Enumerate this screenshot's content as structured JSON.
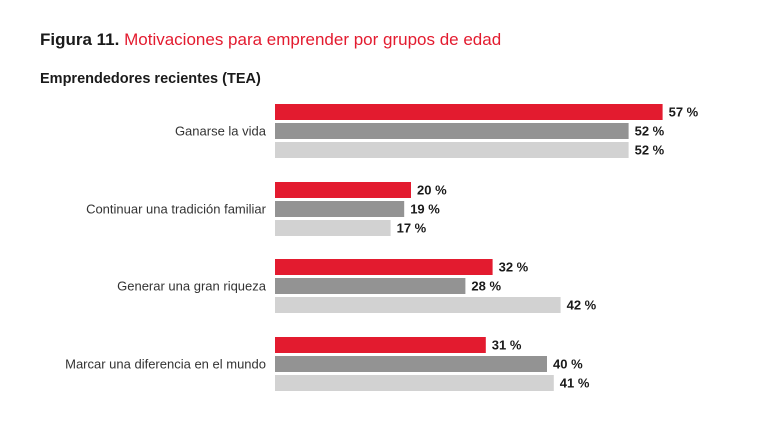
{
  "figure": {
    "number": "Figura 11.",
    "title": "Motivaciones para emprender por grupos de edad"
  },
  "subtitle": "Emprendedores recientes (TEA)",
  "colors": {
    "series_1": "#e31b2f",
    "series_2": "#939393",
    "series_3": "#d2d2d2"
  },
  "chart_data": {
    "type": "bar",
    "orientation": "horizontal",
    "categories": [
      "Ganarse la vida",
      "Continuar una tradición familiar",
      "Generar una gran riqueza",
      "Marcar una diferencia en el mundo"
    ],
    "series": [
      {
        "color": "#e31b2f",
        "values": [
          57,
          20,
          32,
          31
        ]
      },
      {
        "color": "#939393",
        "values": [
          52,
          19,
          28,
          40
        ]
      },
      {
        "color": "#d2d2d2",
        "values": [
          52,
          17,
          42,
          41
        ]
      }
    ],
    "value_suffix": " %",
    "xlim": [
      0,
      57
    ],
    "grid": false,
    "legend": "none"
  }
}
